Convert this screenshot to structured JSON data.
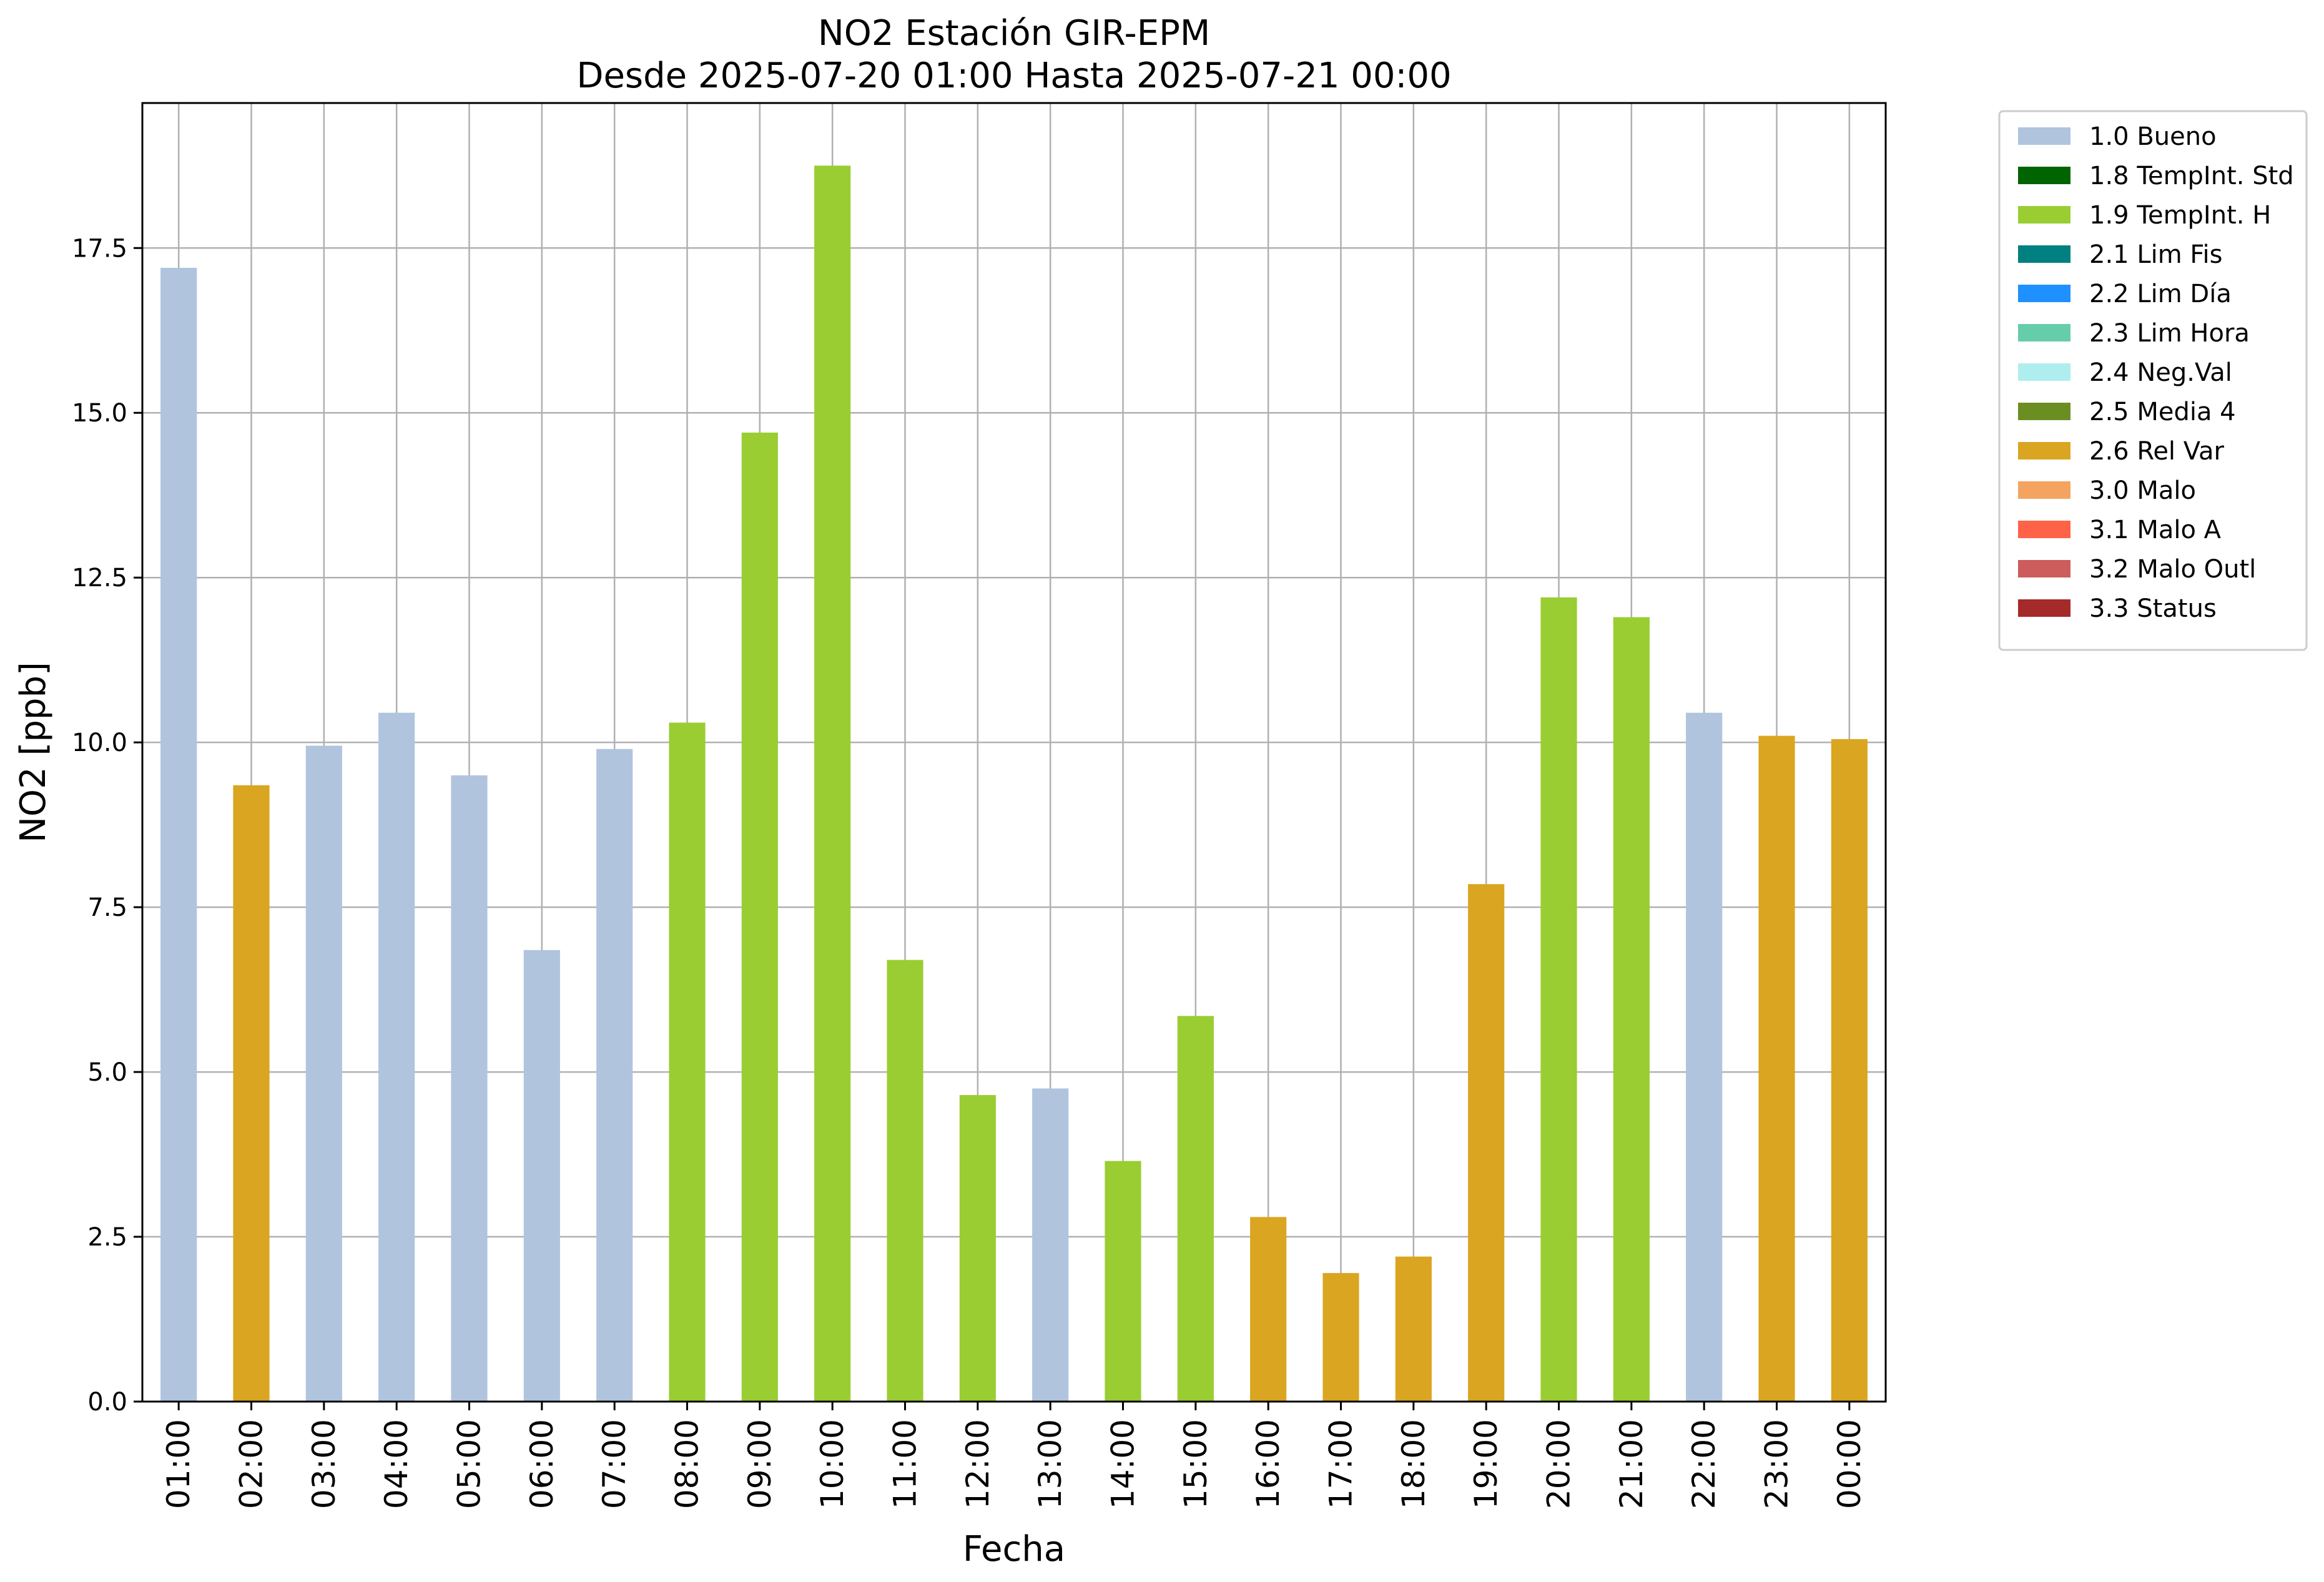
{
  "chart_data": {
    "type": "bar",
    "title": [
      "NO2 Estación GIR-EPM",
      "Desde 2025-07-20 01:00 Hasta 2025-07-21 00:00"
    ],
    "xlabel": "Fecha",
    "ylabel": "NO2 [ppb]",
    "ylim": [
      0,
      19.7
    ],
    "yticks": [
      "0.0",
      "2.5",
      "5.0",
      "7.5",
      "10.0",
      "12.5",
      "15.0",
      "17.5"
    ],
    "grid": true,
    "legend_position": "outside-top-right",
    "categories": [
      "01:00",
      "02:00",
      "03:00",
      "04:00",
      "05:00",
      "06:00",
      "07:00",
      "08:00",
      "09:00",
      "10:00",
      "11:00",
      "12:00",
      "13:00",
      "14:00",
      "15:00",
      "16:00",
      "17:00",
      "18:00",
      "19:00",
      "20:00",
      "21:00",
      "22:00",
      "23:00",
      "00:00"
    ],
    "values": [
      17.2,
      9.35,
      9.95,
      10.45,
      9.5,
      6.85,
      9.9,
      10.3,
      14.7,
      18.75,
      6.7,
      4.65,
      4.75,
      3.65,
      5.85,
      2.8,
      1.95,
      2.2,
      7.85,
      12.2,
      11.9,
      10.45,
      10.1,
      10.05
    ],
    "flags": [
      "1.0 Bueno",
      "2.6 Rel Var",
      "1.0 Bueno",
      "1.0 Bueno",
      "1.0 Bueno",
      "1.0 Bueno",
      "1.0 Bueno",
      "1.9 TempInt. H",
      "1.9 TempInt. H",
      "1.9 TempInt. H",
      "1.9 TempInt. H",
      "1.9 TempInt. H",
      "1.0 Bueno",
      "1.9 TempInt. H",
      "1.9 TempInt. H",
      "2.6 Rel Var",
      "2.6 Rel Var",
      "2.6 Rel Var",
      "2.6 Rel Var",
      "1.9 TempInt. H",
      "1.9 TempInt. H",
      "1.0 Bueno",
      "2.6 Rel Var",
      "2.6 Rel Var"
    ],
    "legend": [
      {
        "label": "1.0 Bueno",
        "color": "#b0c4de"
      },
      {
        "label": "1.8 TempInt. Std",
        "color": "#006400"
      },
      {
        "label": "1.9 TempInt. H",
        "color": "#9acd32"
      },
      {
        "label": "2.1 Lim Fis",
        "color": "#008080"
      },
      {
        "label": "2.2 Lim Día",
        "color": "#1e90ff"
      },
      {
        "label": "2.3 Lim Hora",
        "color": "#66cdaa"
      },
      {
        "label": "2.4 Neg.Val",
        "color": "#afeeee"
      },
      {
        "label": "2.5 Media 4",
        "color": "#6b8e23"
      },
      {
        "label": "2.6 Rel Var",
        "color": "#daa520"
      },
      {
        "label": "3.0 Malo",
        "color": "#f4a460"
      },
      {
        "label": "3.1 Malo A",
        "color": "#ff6347"
      },
      {
        "label": "3.2 Malo Outl",
        "color": "#cd5c5c"
      },
      {
        "label": "3.3 Status",
        "color": "#a52a2a"
      }
    ]
  }
}
